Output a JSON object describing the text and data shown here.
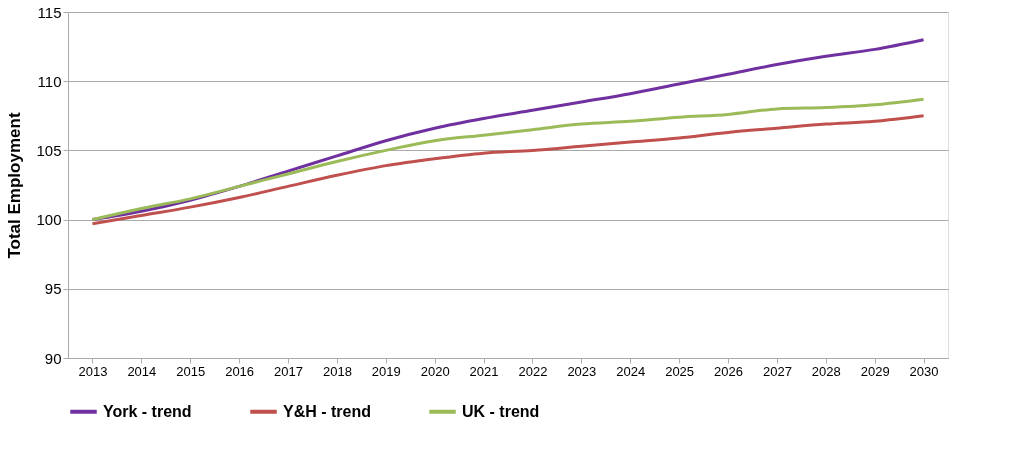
{
  "chart_data": {
    "type": "line",
    "ylabel": "Total Employment",
    "categories": [
      "2013",
      "2014",
      "2015",
      "2016",
      "2017",
      "2018",
      "2019",
      "2020",
      "2021",
      "2022",
      "2023",
      "2024",
      "2025",
      "2026",
      "2027",
      "2028",
      "2029",
      "2030"
    ],
    "series": [
      {
        "name": "York - trend",
        "color": "#7030a0",
        "values": [
          100.0,
          100.6,
          101.4,
          102.4,
          103.5,
          104.6,
          105.7,
          106.6,
          107.3,
          107.9,
          108.5,
          109.1,
          109.8,
          110.5,
          111.2,
          111.8,
          112.3,
          113.0
        ]
      },
      {
        "name": "Y&H - trend",
        "color": "#c0504d",
        "values": [
          99.7,
          100.3,
          100.9,
          101.6,
          102.4,
          103.2,
          103.9,
          104.4,
          104.8,
          105.0,
          105.3,
          105.6,
          105.9,
          106.3,
          106.6,
          106.9,
          107.1,
          107.5
        ]
      },
      {
        "name": "UK - trend",
        "color": "#9bbb59",
        "values": [
          100.0,
          100.8,
          101.5,
          102.4,
          103.3,
          104.2,
          105.0,
          105.7,
          106.1,
          106.5,
          106.9,
          107.1,
          107.4,
          107.6,
          108.0,
          108.1,
          108.3,
          108.7
        ]
      }
    ],
    "ylim": [
      90,
      115
    ],
    "yticks": [
      90,
      95,
      100,
      105,
      110,
      115
    ],
    "grid": "y",
    "legend": "bottom",
    "marker": "none",
    "line_style": "solid"
  }
}
